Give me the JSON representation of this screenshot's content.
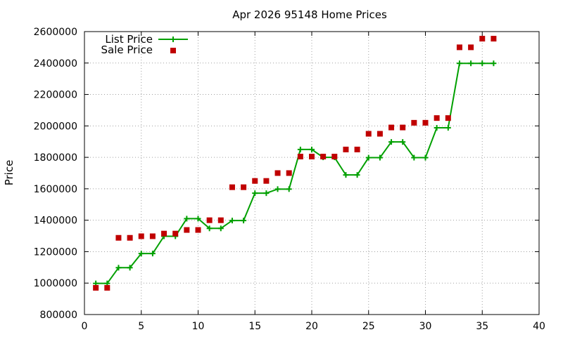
{
  "chart_data": {
    "type": "line",
    "title": "Apr 2026 95148 Home Prices",
    "xlabel": "",
    "ylabel": "Price",
    "xlim": [
      0,
      40
    ],
    "ylim": [
      800000,
      2600000
    ],
    "x_ticks": [
      0,
      5,
      10,
      15,
      20,
      25,
      30,
      35,
      40
    ],
    "y_ticks": [
      800000,
      1000000,
      1200000,
      1400000,
      1600000,
      1800000,
      2000000,
      2200000,
      2400000,
      2600000
    ],
    "grid": true,
    "legend_position": "top-left",
    "series": [
      {
        "name": "List Price",
        "style": "linespoints",
        "color": "#00a000",
        "x": [
          1,
          2,
          3,
          4,
          5,
          6,
          7,
          8,
          9,
          10,
          11,
          12,
          13,
          14,
          15,
          16,
          17,
          18,
          19,
          20,
          21,
          22,
          23,
          24,
          25,
          26,
          27,
          28,
          29,
          30,
          31,
          32,
          33,
          34,
          35,
          36
        ],
        "y": [
          998000,
          998000,
          1098000,
          1098000,
          1188000,
          1188000,
          1298000,
          1298000,
          1410000,
          1410000,
          1348000,
          1348000,
          1398000,
          1398000,
          1572000,
          1572000,
          1598000,
          1598000,
          1850000,
          1850000,
          1800000,
          1800000,
          1688000,
          1688000,
          1798000,
          1798000,
          1898000,
          1898000,
          1798000,
          1798000,
          1988000,
          1988000,
          2398000,
          2398000,
          2398000,
          2398000
        ]
      },
      {
        "name": "Sale Price",
        "style": "points",
        "color": "#c00000",
        "x": [
          1,
          2,
          3,
          4,
          5,
          6,
          7,
          8,
          9,
          10,
          11,
          12,
          13,
          14,
          15,
          16,
          17,
          18,
          19,
          20,
          21,
          22,
          23,
          24,
          25,
          26,
          27,
          28,
          29,
          30,
          31,
          32,
          33,
          34,
          35,
          36
        ],
        "y": [
          970000,
          970000,
          1288000,
          1288000,
          1298000,
          1298000,
          1315000,
          1315000,
          1338000,
          1338000,
          1400000,
          1400000,
          1610000,
          1610000,
          1650000,
          1650000,
          1700000,
          1700000,
          1805000,
          1805000,
          1805000,
          1805000,
          1850000,
          1850000,
          1950000,
          1950000,
          1990000,
          1990000,
          2020000,
          2020000,
          2050000,
          2050000,
          2500000,
          2500000,
          2555000,
          2555000
        ]
      }
    ]
  }
}
